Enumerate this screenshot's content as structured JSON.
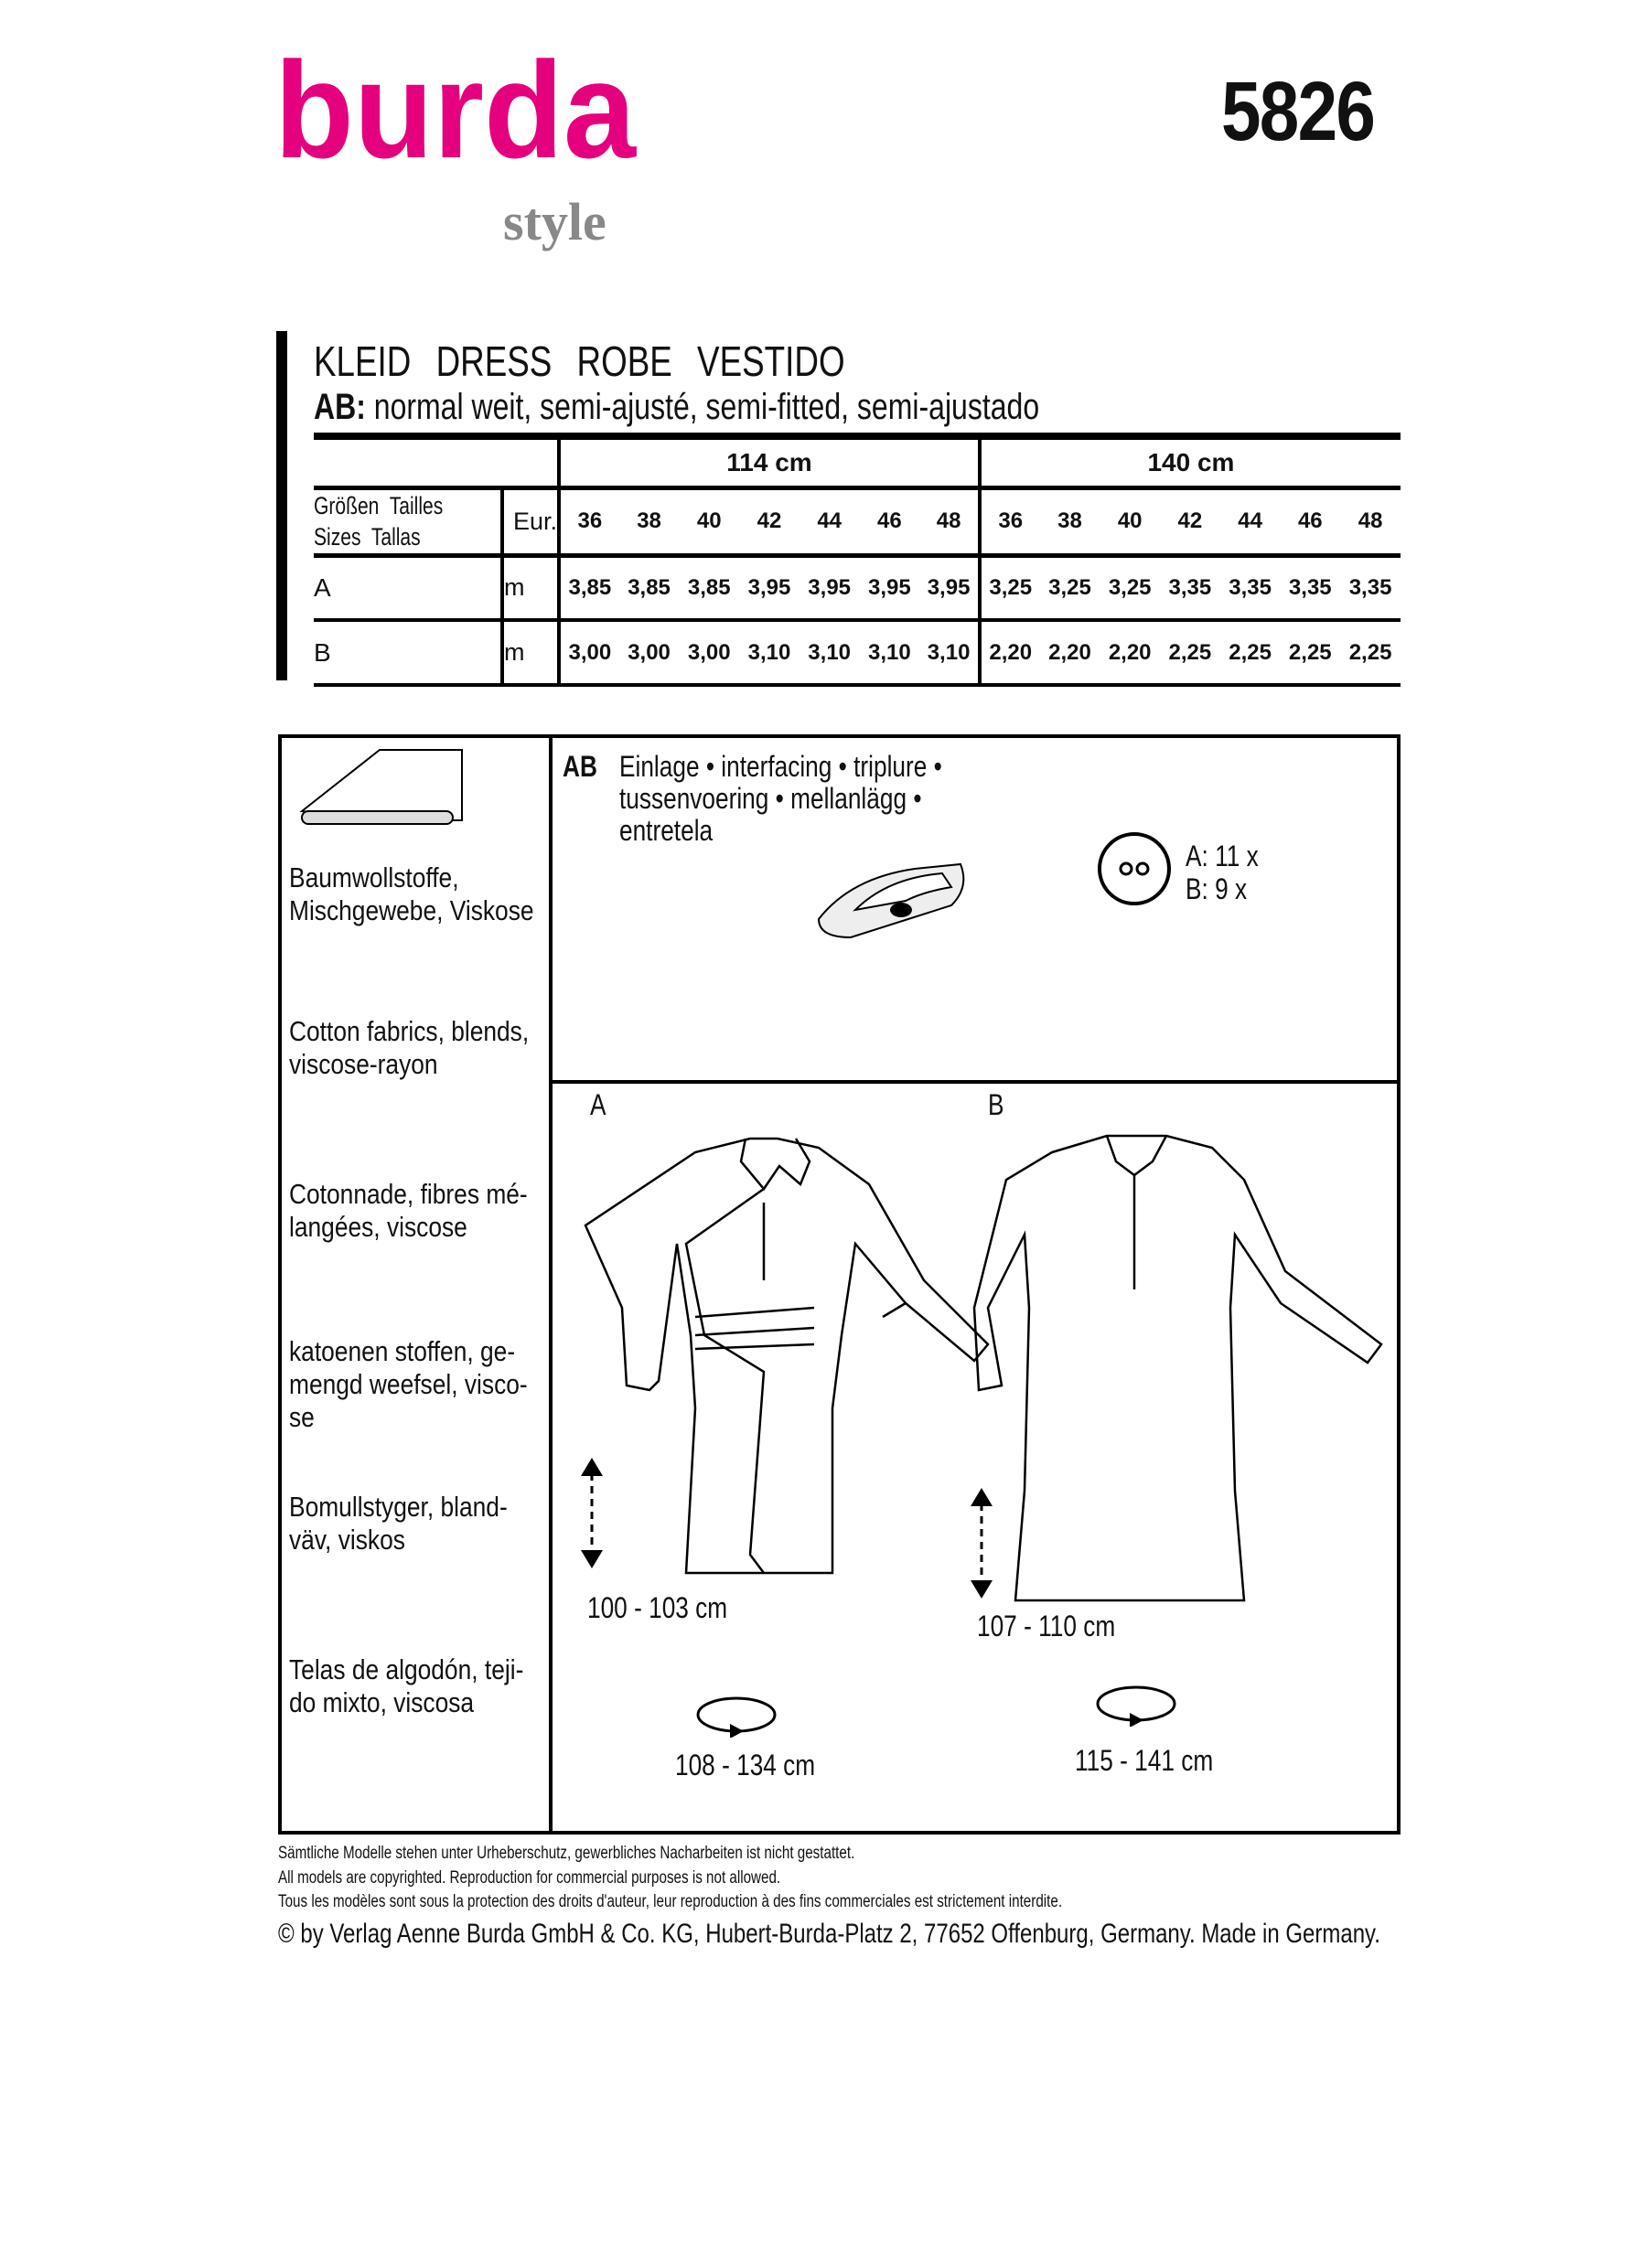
{
  "brand": {
    "logo_text": "burda",
    "logo_sub": "style",
    "pink": "#e5007e"
  },
  "pattern_number": "5826",
  "title": [
    "KLEID",
    "DRESS",
    "ROBE",
    "VESTIDO"
  ],
  "subtitle": {
    "label": "AB:",
    "text": " normal weit, semi-ajusté, semi-fitted, semi-ajustado"
  },
  "table": {
    "widths": [
      "114 cm",
      "140 cm"
    ],
    "size_label_1": "Größen  Tailles",
    "size_label_2": "Sizes  Tallas",
    "eur": "Eur.",
    "sizes": [
      "36",
      "38",
      "40",
      "42",
      "44",
      "46",
      "48",
      "36",
      "38",
      "40",
      "42",
      "44",
      "46",
      "48"
    ],
    "rows": [
      {
        "view": "A",
        "unit": "m",
        "values": [
          "3,85",
          "3,85",
          "3,85",
          "3,95",
          "3,95",
          "3,95",
          "3,95",
          "3,25",
          "3,25",
          "3,25",
          "3,35",
          "3,35",
          "3,35",
          "3,35"
        ]
      },
      {
        "view": "B",
        "unit": "m",
        "values": [
          "3,00",
          "3,00",
          "3,00",
          "3,10",
          "3,10",
          "3,10",
          "3,10",
          "2,20",
          "2,20",
          "2,20",
          "2,25",
          "2,25",
          "2,25",
          "2,25"
        ]
      }
    ]
  },
  "fabrics": [
    "Baumwollstoffe, Mischgewebe, Viskose",
    "Cotton fabrics, blends, viscose-rayon",
    "Cotonnade, fibres mé-langées, viscose",
    "katoenen stoffen, ge-mengd weefsel, visco-se",
    "Bomullstyger, bland-väv, viskos",
    "Telas de algodón, teji-do mixto, viscosa"
  ],
  "notions": {
    "views": "AB",
    "interfacing_1": "Einlage • interfacing • triplure •",
    "interfacing_2": "tussenvoering • mellanlägg •",
    "interfacing_3": "entretela",
    "buttons_a": "A: 11 x",
    "buttons_b": "B: 9 x"
  },
  "views": {
    "a": {
      "label": "A",
      "length": "100 - 103 cm",
      "width": "108 - 134 cm"
    },
    "b": {
      "label": "B",
      "length": "107 - 110 cm",
      "width": "115 - 141 cm"
    }
  },
  "footer": [
    "Sämtliche Modelle stehen unter Urheberschutz, gewerbliches Nacharbeiten ist nicht gestattet.",
    "All models are copyrighted. Reproduction for commercial purposes is not allowed.",
    "Tous les modèles sont sous la protection des droits d'auteur, leur reproduction à des fins commerciales est strictement interdite.",
    "© by Verlag Aenne Burda GmbH & Co. KG, Hubert-Burda-Platz 2, 77652 Offenburg, Germany. Made in Germany."
  ]
}
